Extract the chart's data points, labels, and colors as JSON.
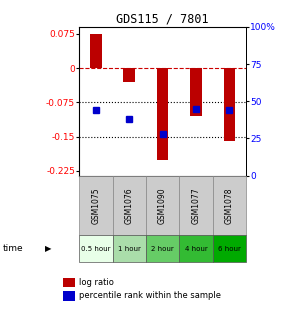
{
  "title": "GDS115 / 7801",
  "samples": [
    "GSM1075",
    "GSM1076",
    "GSM1090",
    "GSM1077",
    "GSM1078"
  ],
  "time_labels": [
    "0.5 hour",
    "1 hour",
    "2 hour",
    "4 hour",
    "6 hour"
  ],
  "time_colors": [
    "#e8ffe8",
    "#aaddaa",
    "#66cc66",
    "#33bb33",
    "#00aa00"
  ],
  "log_ratios": [
    0.075,
    -0.03,
    -0.2,
    -0.105,
    -0.16
  ],
  "percentile_ranks": [
    44,
    38,
    28,
    45,
    44
  ],
  "bar_color": "#bb0000",
  "dot_color": "#0000cc",
  "ylim_left": [
    -0.235,
    0.09
  ],
  "ylim_right": [
    0,
    100
  ],
  "yticks_left": [
    0.075,
    0,
    -0.075,
    -0.15,
    -0.225
  ],
  "yticks_right": [
    100,
    75,
    50,
    25,
    0
  ],
  "hlines": [
    0,
    -0.075,
    -0.15
  ],
  "hline_styles": [
    "--",
    ":",
    ":"
  ],
  "hline_colors": [
    "#cc0000",
    "black",
    "black"
  ],
  "legend_log_ratio_label": "log ratio",
  "legend_percentile_label": "percentile rank within the sample",
  "bar_width": 0.35
}
